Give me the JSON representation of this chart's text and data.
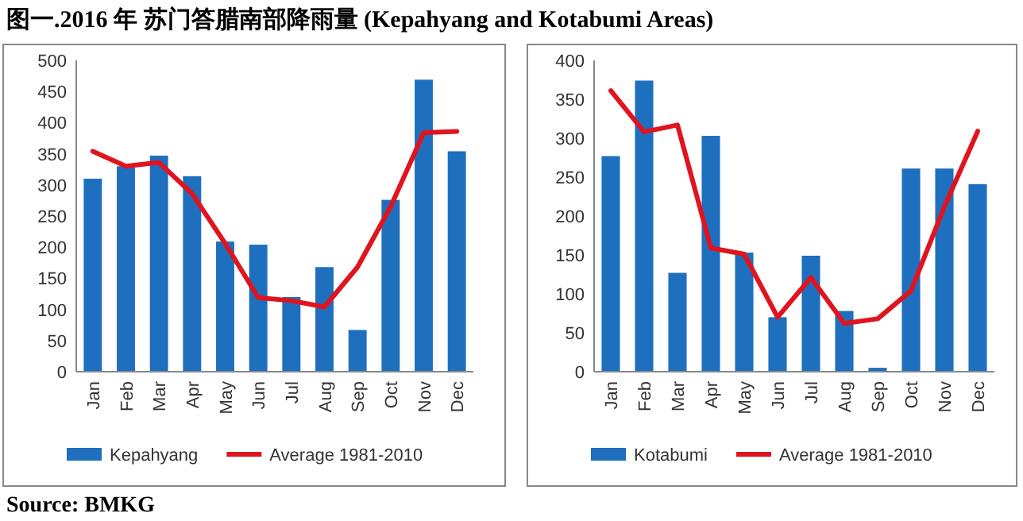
{
  "chart_data": [
    {
      "type": "bar",
      "title": "图一.2016 年 苏门答腊南部降雨量 (Kepahyang and Kotabumi Areas)",
      "categories": [
        "Jan",
        "Feb",
        "Mar",
        "Apr",
        "May",
        "Jun",
        "Jul",
        "Aug",
        "Sep",
        "Oct",
        "Nov",
        "Dec"
      ],
      "ylim": [
        0,
        500
      ],
      "yticks": [
        0,
        50,
        100,
        150,
        200,
        250,
        300,
        350,
        400,
        450,
        500
      ],
      "grid": false,
      "legend": "bottom",
      "annotations": [
        "Source: BMKG"
      ],
      "series": [
        {
          "name": "Kepahyang",
          "type": "bar",
          "color": "#1f6fbf",
          "values": [
            310,
            330,
            347,
            314,
            209,
            204,
            120,
            168,
            67,
            276,
            469,
            354
          ]
        },
        {
          "name": "Average 1981-2010",
          "type": "line",
          "color": "#e0141e",
          "values": [
            354,
            330,
            336,
            286,
            206,
            119,
            114,
            104,
            168,
            265,
            384,
            386
          ]
        }
      ]
    },
    {
      "type": "bar",
      "categories": [
        "Jan",
        "Feb",
        "Mar",
        "Apr",
        "May",
        "Jun",
        "Jul",
        "Aug",
        "Sep",
        "Oct",
        "Nov",
        "Dec"
      ],
      "ylim": [
        0,
        400
      ],
      "yticks": [
        0,
        50,
        100,
        150,
        200,
        250,
        300,
        350,
        400
      ],
      "grid": false,
      "legend": "bottom",
      "series": [
        {
          "name": "Kotabumi",
          "type": "bar",
          "color": "#1f6fbf",
          "values": [
            277,
            374,
            127,
            303,
            153,
            70,
            149,
            78,
            5,
            261,
            261,
            241
          ]
        },
        {
          "name": "Average 1981-2010",
          "type": "line",
          "color": "#e0141e",
          "values": [
            361,
            308,
            317,
            159,
            151,
            70,
            121,
            62,
            68,
            104,
            212,
            309
          ]
        }
      ]
    }
  ]
}
